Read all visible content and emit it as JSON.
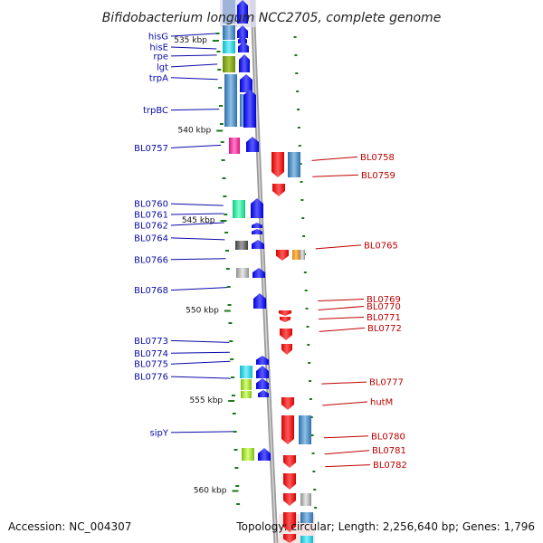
{
  "title": "Bifidobacterium longum NCC2705, complete genome",
  "footer": {
    "accession": "Accession: NC_004307",
    "topology": "Topology: circular; Length: 2,256,640 bp; Genes: 1,796"
  },
  "colors": {
    "forward": "#1010e8",
    "reverse": "#e81010",
    "label_forward": "#0a0aa8",
    "label_reverse": "#c00000",
    "tick": "#1a7a1a",
    "backbone": "#888888"
  },
  "kbp_markers": [
    {
      "label": "535 kbp",
      "pos": 535
    },
    {
      "label": "540 kbp",
      "pos": 540
    },
    {
      "label": "545 kbp",
      "pos": 545
    },
    {
      "label": "550 kbp",
      "pos": 550
    },
    {
      "label": "555 kbp",
      "pos": 555
    },
    {
      "label": "560 kbp",
      "pos": 560
    }
  ],
  "forward_genes": [
    {
      "name": "hisG",
      "pos": 534.8
    },
    {
      "name": "hisE",
      "pos": 535.4
    },
    {
      "name": "rpe",
      "pos": 535.9
    },
    {
      "name": "lgt",
      "pos": 536.5
    },
    {
      "name": "trpA",
      "pos": 537.1
    },
    {
      "name": "trpBC",
      "pos": 538.9
    },
    {
      "name": "BL0757",
      "pos": 541.0
    },
    {
      "name": "BL0760",
      "pos": 544.1
    },
    {
      "name": "BL0761",
      "pos": 544.7
    },
    {
      "name": "BL0762",
      "pos": 545.3
    },
    {
      "name": "BL0764",
      "pos": 546.0
    },
    {
      "name": "BL0766",
      "pos": 547.2
    },
    {
      "name": "BL0768",
      "pos": 548.9
    },
    {
      "name": "BL0773",
      "pos": 551.7
    },
    {
      "name": "BL0774",
      "pos": 552.4
    },
    {
      "name": "BL0775",
      "pos": 553.0
    },
    {
      "name": "BL0776",
      "pos": 553.7
    },
    {
      "name": "sipY",
      "pos": 556.8
    }
  ],
  "reverse_genes": [
    {
      "name": "BL0758",
      "pos": 541.5
    },
    {
      "name": "BL0759",
      "pos": 542.5
    },
    {
      "name": "BL0765",
      "pos": 546.4
    },
    {
      "name": "BL0769",
      "pos": 549.4
    },
    {
      "name": "BL0770",
      "pos": 549.8
    },
    {
      "name": "BL0771",
      "pos": 550.4
    },
    {
      "name": "BL0772",
      "pos": 551.0
    },
    {
      "name": "BL0777",
      "pos": 554.0
    },
    {
      "name": "hutM",
      "pos": 555.1
    },
    {
      "name": "BL0780",
      "pos": 557.0
    },
    {
      "name": "BL0781",
      "pos": 557.8
    },
    {
      "name": "BL0782",
      "pos": 558.6
    }
  ]
}
